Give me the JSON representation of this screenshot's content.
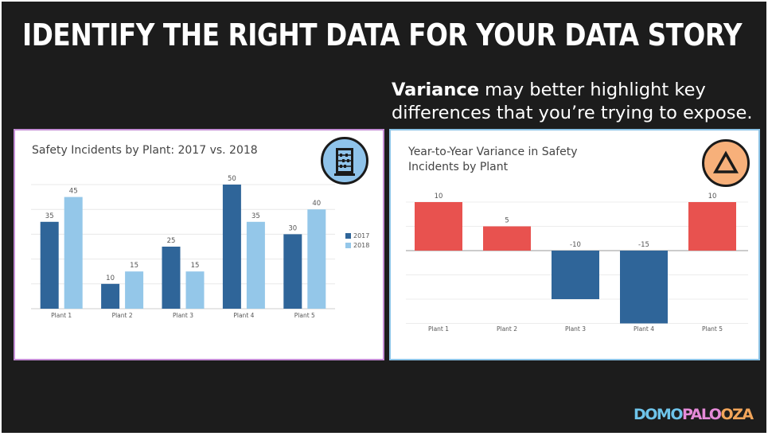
{
  "slide": {
    "title": "IDENTIFY THE RIGHT DATA FOR YOUR DATA STORY",
    "subtitle_bold": "Variance",
    "subtitle_rest": " may better highlight key differences that you’re trying to expose.",
    "logo": {
      "part1": "DOMO",
      "part2": "PALO",
      "part3": "OZA"
    }
  },
  "icons": {
    "left": "abacus-icon",
    "right": "delta-triangle-icon"
  },
  "colors": {
    "series2017": "#2f6599",
    "series2018": "#94c7e9",
    "positive": "#e8524f",
    "negative": "#2f6599"
  },
  "chart_data": [
    {
      "type": "bar",
      "title": "Safety Incidents by Plant: 2017 vs. 2018",
      "categories": [
        "Plant 1",
        "Plant 2",
        "Plant 3",
        "Plant 4",
        "Plant 5"
      ],
      "series": [
        {
          "name": "2017",
          "values": [
            35,
            10,
            25,
            50,
            30
          ],
          "color": "#2f6599"
        },
        {
          "name": "2018",
          "values": [
            45,
            15,
            15,
            35,
            40
          ],
          "color": "#94c7e9"
        }
      ],
      "ylim": [
        0,
        50
      ],
      "grid": true,
      "legend": "right"
    },
    {
      "type": "bar",
      "title": "Year-to-Year Variance in Safety Incidents by Plant",
      "categories": [
        "Plant 1",
        "Plant 2",
        "Plant 3",
        "Plant 4",
        "Plant 5"
      ],
      "values": [
        10,
        5,
        -10,
        -15,
        10
      ],
      "ylim": [
        -15,
        10
      ],
      "grid": true
    }
  ]
}
